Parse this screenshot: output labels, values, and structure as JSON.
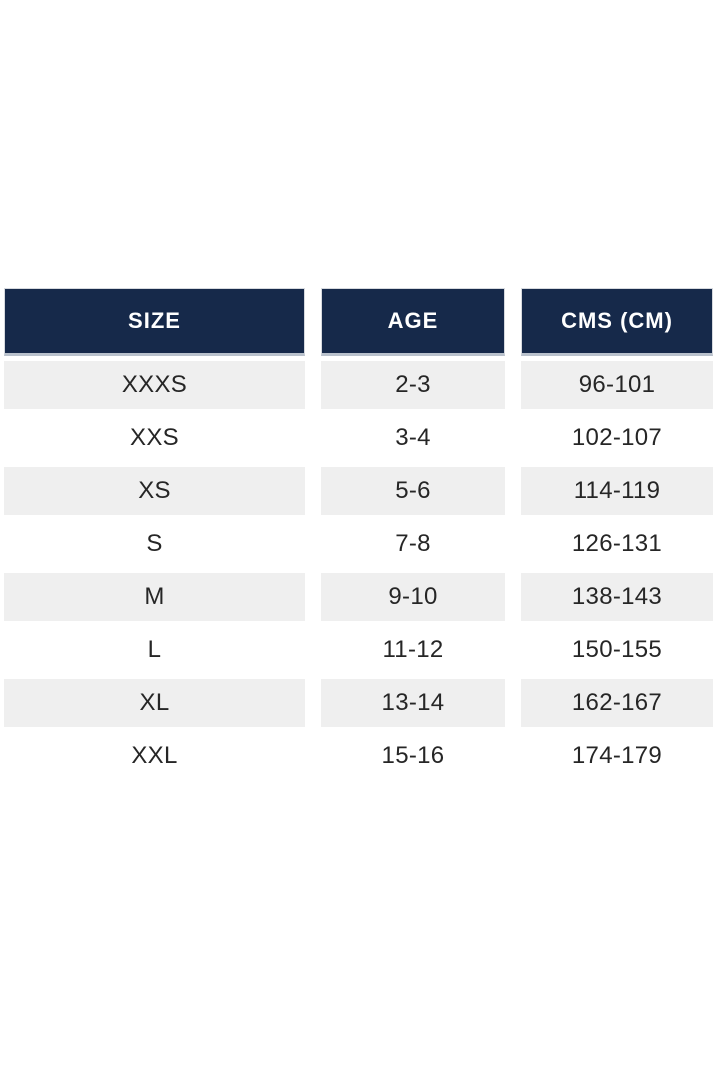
{
  "table": {
    "columns": [
      {
        "header": "SIZE"
      },
      {
        "header": "AGE"
      },
      {
        "header": "CMS (CM)"
      }
    ],
    "rows": [
      {
        "size": "XXXS",
        "age": "2-3",
        "cms": "96-101"
      },
      {
        "size": "XXS",
        "age": "3-4",
        "cms": "102-107"
      },
      {
        "size": "XS",
        "age": "5-6",
        "cms": "114-119"
      },
      {
        "size": "S",
        "age": "7-8",
        "cms": "126-131"
      },
      {
        "size": "M",
        "age": "9-10",
        "cms": "138-143"
      },
      {
        "size": "L",
        "age": "11-12",
        "cms": "150-155"
      },
      {
        "size": "XL",
        "age": "13-14",
        "cms": "162-167"
      },
      {
        "size": "XXL",
        "age": "15-16",
        "cms": "174-179"
      }
    ],
    "colors": {
      "header_bg": "#16294a",
      "header_text": "#ffffff",
      "row_alt_bg": "#efefef",
      "row_bg": "#ffffff",
      "cell_text": "#262626",
      "header_bottom_line": "#b9c1cc"
    }
  }
}
